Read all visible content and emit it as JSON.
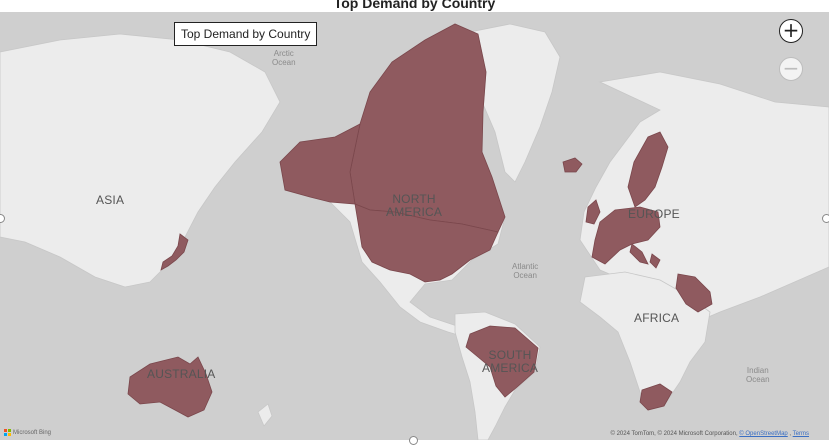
{
  "visual": {
    "title": "Top Demand by Country"
  },
  "tooltip": {
    "text": "Top Demand by Country"
  },
  "zoom": {
    "in_label": "+",
    "out_label": "−"
  },
  "regions": {
    "asia": "ASIA",
    "north_america": "NORTH\nAMERICA",
    "europe": "EUROPE",
    "africa": "AFRICA",
    "south_america": "SOUTH\nAMERICA",
    "australia": "AUSTRALIA"
  },
  "oceans": {
    "arctic": "Arctic\nOcean",
    "atlantic": "Atlantic\nOcean",
    "indian": "Indian\nOcean"
  },
  "attribution": {
    "text": "© 2024 TomTom, © 2024 Microsoft Corporation, ",
    "osm": "© OpenStreetMap",
    "terms": "Terms"
  },
  "branding": {
    "label": "Microsoft Bing"
  },
  "colors": {
    "highlight": "#8f5a5f",
    "land": "#ececec",
    "water": "#cfcfcf"
  },
  "highlighted_countries": [
    "Canada",
    "United States",
    "Alaska (USA)",
    "Japan",
    "Australia",
    "Brazil",
    "United Kingdom",
    "Ireland",
    "France",
    "Spain",
    "Portugal",
    "Italy",
    "Germany",
    "Austria",
    "Switzerland",
    "Netherlands",
    "Belgium",
    "Denmark",
    "Norway",
    "Sweden",
    "Finland",
    "Poland",
    "Greece",
    "Iceland",
    "Saudi Arabia",
    "South Africa"
  ]
}
